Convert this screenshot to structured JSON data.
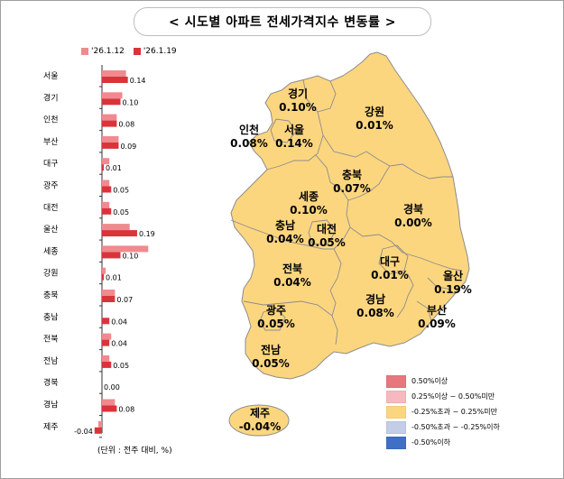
{
  "title": "< 시도별 아파트 전세가격지수 변동률 >",
  "legend": [
    {
      "label": "'26.1.12",
      "color": "#f08a8f"
    },
    {
      "label": "'26.1.19",
      "color": "#d9343b"
    }
  ],
  "unit_note": "(단위 : 전주 대비, %)",
  "chart_data": {
    "type": "bar",
    "orientation": "horizontal",
    "categories": [
      "서울",
      "경기",
      "인천",
      "부산",
      "대구",
      "광주",
      "대전",
      "울산",
      "세종",
      "강원",
      "충북",
      "충남",
      "전북",
      "전남",
      "경북",
      "경남",
      "제주"
    ],
    "series": [
      {
        "name": "'26.1.12",
        "values": [
          0.13,
          0.11,
          0.08,
          0.09,
          0.04,
          0.04,
          0.04,
          0.15,
          0.25,
          0.02,
          0.07,
          0.0,
          0.05,
          0.04,
          0.0,
          0.07,
          -0.02
        ]
      },
      {
        "name": "'26.1.19",
        "values": [
          0.14,
          0.1,
          0.08,
          0.09,
          0.01,
          0.05,
          0.05,
          0.19,
          0.1,
          0.01,
          0.07,
          0.04,
          0.04,
          0.05,
          0.0,
          0.08,
          -0.04
        ]
      }
    ],
    "data_labels": [
      "0.14",
      "0.10",
      "0.08",
      "0.09",
      "0.01",
      "0.05",
      "0.05",
      "0.19",
      "0.10",
      "0.01",
      "0.07",
      "0.04",
      "0.04",
      "0.05",
      "0.00",
      "0.08",
      "-0.04"
    ]
  },
  "map": {
    "regions": [
      {
        "key": "gyeonggi",
        "name": "경기",
        "value": "0.10%"
      },
      {
        "key": "incheon",
        "name": "인천",
        "value": "0.08%"
      },
      {
        "key": "seoul",
        "name": "서울",
        "value": "0.14%"
      },
      {
        "key": "gangwon",
        "name": "강원",
        "value": "0.01%"
      },
      {
        "key": "chungbuk",
        "name": "충북",
        "value": "0.07%"
      },
      {
        "key": "sejong",
        "name": "세종",
        "value": "0.10%"
      },
      {
        "key": "chungnam",
        "name": "충남",
        "value": "0.04%"
      },
      {
        "key": "daejeon",
        "name": "대전",
        "value": "0.05%"
      },
      {
        "key": "gyeongbuk",
        "name": "경북",
        "value": "0.00%"
      },
      {
        "key": "jeonbuk",
        "name": "전북",
        "value": "0.04%"
      },
      {
        "key": "daegu",
        "name": "대구",
        "value": "0.01%"
      },
      {
        "key": "ulsan",
        "name": "울산",
        "value": "0.19%"
      },
      {
        "key": "gyeongnam",
        "name": "경남",
        "value": "0.08%"
      },
      {
        "key": "busan",
        "name": "부산",
        "value": "0.09%"
      },
      {
        "key": "gwangju",
        "name": "광주",
        "value": "0.05%"
      },
      {
        "key": "jeonnam",
        "name": "전남",
        "value": "0.05%"
      },
      {
        "key": "jeju",
        "name": "제주",
        "value": "-0.04%"
      }
    ],
    "fill_color": "#fcd67f",
    "legend": [
      {
        "label": "0.50%이상",
        "color": "#e8777d"
      },
      {
        "label": "0.25%이상 ~ 0.50%미만",
        "color": "#f7b9bf"
      },
      {
        "label": "-0.25%초과 ~ 0.25%미만",
        "color": "#fcd67f"
      },
      {
        "label": "-0.50%초과 ~ -0.25%이하",
        "color": "#c4cde6"
      },
      {
        "label": "-0.50%이하",
        "color": "#3f6fc6"
      }
    ]
  }
}
